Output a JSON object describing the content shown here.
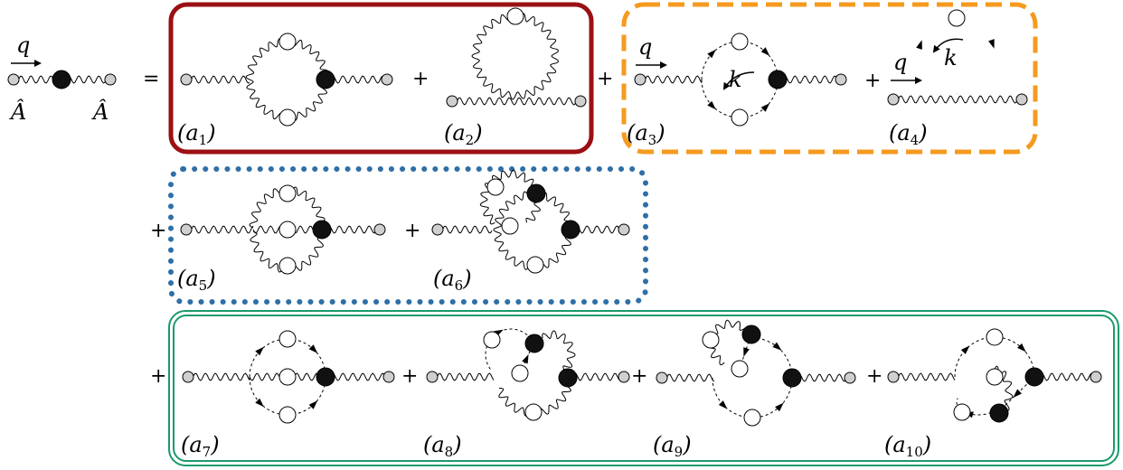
{
  "external": {
    "momentum": "q",
    "field_left": "Â",
    "field_right": "Â"
  },
  "loop_momentum": "k",
  "operators": {
    "equals": "=",
    "plus": "+"
  },
  "groups": [
    {
      "id": "one-loop-gluon",
      "border_style": "solid",
      "color": "#9b1014",
      "diagrams": [
        "a1",
        "a2"
      ]
    },
    {
      "id": "one-loop-ghost",
      "border_style": "dashed",
      "color": "#f59a1f",
      "diagrams": [
        "a3",
        "a4"
      ]
    },
    {
      "id": "two-loop-gluon",
      "border_style": "dotted",
      "color": "#2e6fa7",
      "diagrams": [
        "a5",
        "a6"
      ]
    },
    {
      "id": "two-loop-ghost",
      "border_style": "double",
      "color": "#1b9a6b",
      "diagrams": [
        "a7",
        "a8",
        "a9",
        "a10"
      ]
    }
  ],
  "diagram_labels": {
    "a1": {
      "base": "(a",
      "index": "1",
      "close": ")"
    },
    "a2": {
      "base": "(a",
      "index": "2",
      "close": ")"
    },
    "a3": {
      "base": "(a",
      "index": "3",
      "close": ")"
    },
    "a4": {
      "base": "(a",
      "index": "4",
      "close": ")"
    },
    "a5": {
      "base": "(a",
      "index": "5",
      "close": ")"
    },
    "a6": {
      "base": "(a",
      "index": "6",
      "close": ")"
    },
    "a7": {
      "base": "(a",
      "index": "7",
      "close": ")"
    },
    "a8": {
      "base": "(a",
      "index": "8",
      "close": ")"
    },
    "a9": {
      "base": "(a",
      "index": "9",
      "close": ")"
    },
    "a10": {
      "base": "(a",
      "index": "10",
      "close": ")"
    }
  }
}
